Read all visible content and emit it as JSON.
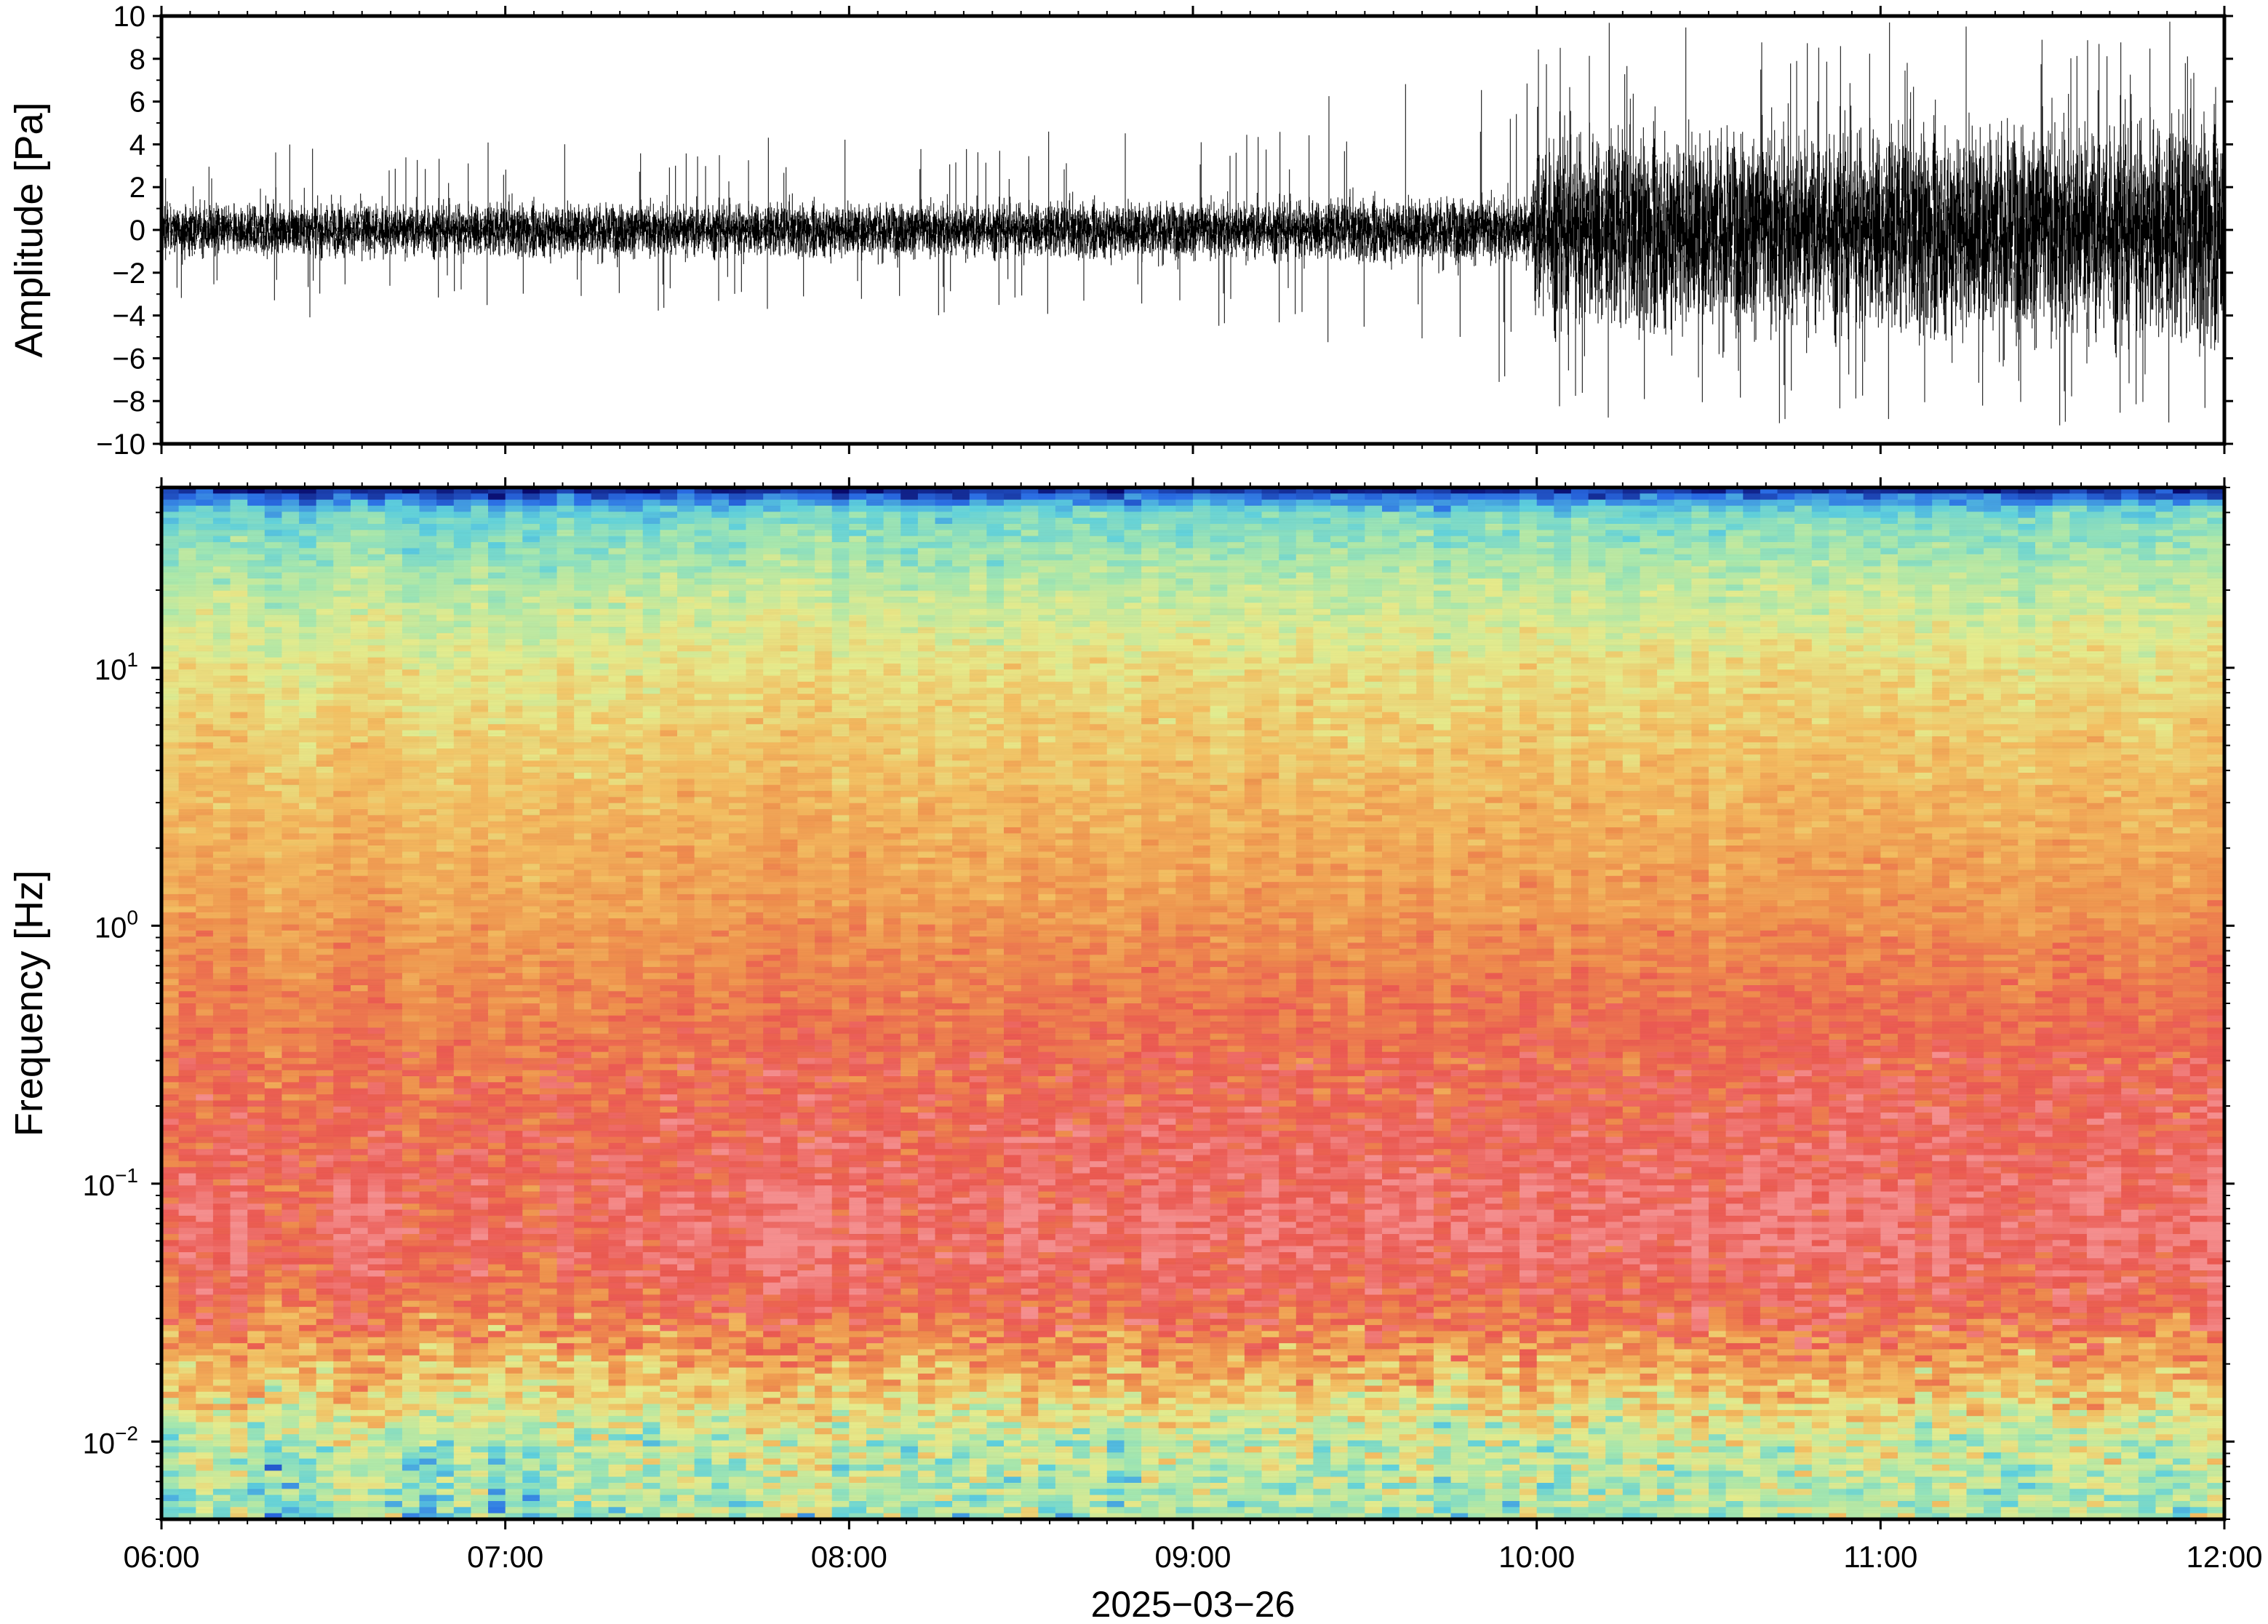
{
  "chart_data": [
    {
      "type": "line",
      "panel": "waveform",
      "ylabel": "Amplitude [Pa]",
      "ylim": [
        -10,
        10
      ],
      "yticks": [
        "10",
        "8",
        "6",
        "4",
        "2",
        "0",
        "−2",
        "−4",
        "−6",
        "−8",
        "−10"
      ],
      "ytick_values": [
        10,
        8,
        6,
        4,
        2,
        0,
        -2,
        -4,
        -6,
        -8,
        -10
      ],
      "x_range": [
        "06:00",
        "12:00"
      ],
      "envelope": {
        "times": [
          "06:00",
          "07:00",
          "08:00",
          "09:00",
          "09:59",
          "10:00",
          "11:00",
          "12:00"
        ],
        "half_width_pa": [
          1.4,
          1.5,
          1.5,
          1.6,
          1.9,
          5.5,
          5.8,
          6.5
        ],
        "max_peaks_pa": [
          4.0,
          4.3,
          4.6,
          5.0,
          9.0,
          10.0,
          10.0,
          10.0
        ]
      },
      "color": "#000000"
    },
    {
      "type": "heatmap",
      "panel": "spectrogram",
      "ylabel": "Frequency [Hz]",
      "yscale": "log",
      "ylim": [
        0.005,
        50
      ],
      "yticks": [
        {
          "base": "10",
          "exp": "1",
          "value": 10
        },
        {
          "base": "10",
          "exp": "0",
          "value": 1
        },
        {
          "base": "10",
          "exp": "−1",
          "value": 0.1
        },
        {
          "base": "10",
          "exp": "−2",
          "value": 0.01
        }
      ],
      "colormap": [
        "#08086b",
        "#2a6ee8",
        "#5fd3e0",
        "#a8eab0",
        "#e8ee8e",
        "#f6c062",
        "#f2934e",
        "#ee5a52",
        "#f89090"
      ],
      "bands": [
        {
          "freq_hz": 0.007,
          "level": "light-green"
        },
        {
          "freq_hz": 0.02,
          "level": "orange"
        },
        {
          "freq_hz": 0.05,
          "level": "red-pink"
        },
        {
          "freq_hz": 0.3,
          "level": "red"
        },
        {
          "freq_hz": 2,
          "level": "orange"
        },
        {
          "freq_hz": 10,
          "level": "yellow"
        },
        {
          "freq_hz": 30,
          "level": "cyan"
        },
        {
          "freq_hz": 48,
          "level": "dark-blue"
        }
      ],
      "xlabel": "2025−03−26",
      "xticks": [
        "06:00",
        "07:00",
        "08:00",
        "09:00",
        "10:00",
        "11:00",
        "12:00"
      ]
    }
  ]
}
